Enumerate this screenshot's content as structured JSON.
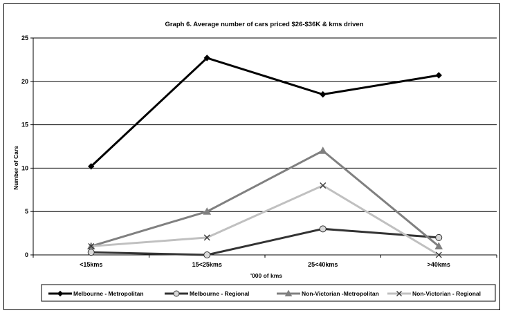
{
  "chart_data": {
    "type": "line",
    "title": "Graph 6. Average number of cars priced $26-$36K & kms driven",
    "xlabel": "'000 of kms",
    "ylabel": "Number of Cars",
    "categories": [
      "<15kms",
      "15<25kms",
      "25<40kms",
      ">40kms"
    ],
    "ylim": [
      0,
      25
    ],
    "yticks": [
      0,
      5,
      10,
      15,
      20,
      25
    ],
    "grid": true,
    "legend_position": "bottom",
    "series": [
      {
        "name": "Melbourne - Metropolitan",
        "values": [
          10.2,
          22.7,
          18.5,
          20.7
        ],
        "color": "#000000",
        "marker": "diamond"
      },
      {
        "name": "Melbourne - Regional",
        "values": [
          0.3,
          0,
          3,
          2
        ],
        "color": "#333333",
        "marker": "circle"
      },
      {
        "name": "Non-Victorian -Metropolitan",
        "values": [
          1,
          5,
          12,
          1
        ],
        "color": "#808080",
        "marker": "triangle"
      },
      {
        "name": "Non-Victorian - Regional",
        "values": [
          1,
          2,
          8,
          0
        ],
        "color": "#c0c0c0",
        "marker": "x"
      }
    ]
  }
}
